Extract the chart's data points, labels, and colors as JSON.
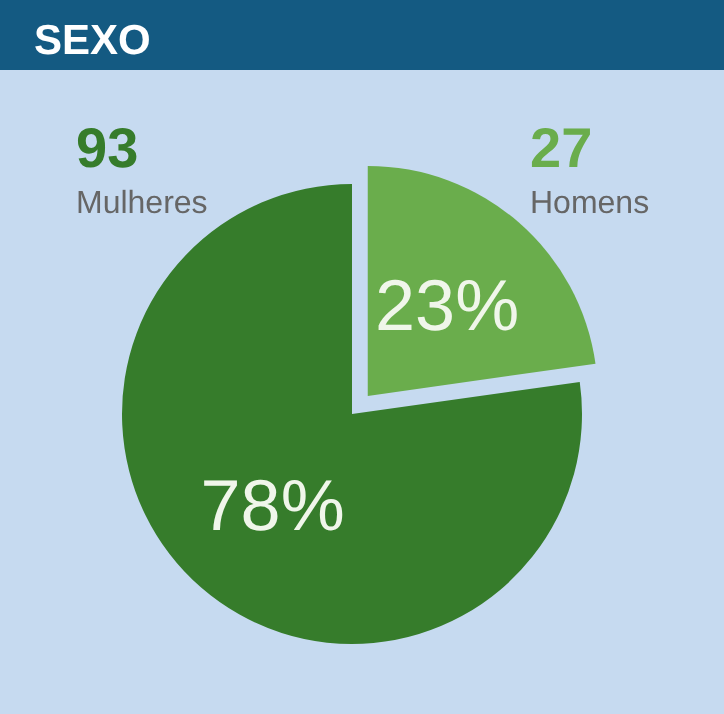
{
  "chart_data": {
    "type": "pie",
    "title": "SEXO",
    "categories": [
      "Mulheres",
      "Homens"
    ],
    "values": [
      78,
      23
    ],
    "value_labels": [
      "78%",
      "23%"
    ],
    "annotations": [
      "93",
      "27"
    ],
    "colors": [
      "#367c2b",
      "#6aad4c"
    ]
  }
}
